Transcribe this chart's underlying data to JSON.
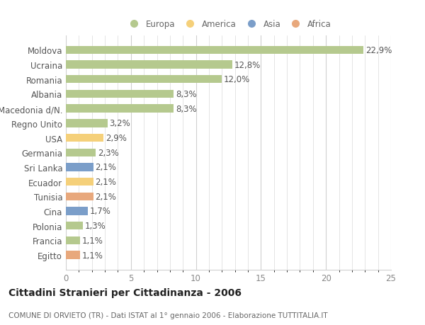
{
  "countries": [
    "Moldova",
    "Ucraina",
    "Romania",
    "Albania",
    "Macedonia d/N.",
    "Regno Unito",
    "USA",
    "Germania",
    "Sri Lanka",
    "Ecuador",
    "Tunisia",
    "Cina",
    "Polonia",
    "Francia",
    "Egitto"
  ],
  "values": [
    22.9,
    12.8,
    12.0,
    8.3,
    8.3,
    3.2,
    2.9,
    2.3,
    2.1,
    2.1,
    2.1,
    1.7,
    1.3,
    1.1,
    1.1
  ],
  "labels": [
    "22,9%",
    "12,8%",
    "12,0%",
    "8,3%",
    "8,3%",
    "3,2%",
    "2,9%",
    "2,3%",
    "2,1%",
    "2,1%",
    "2,1%",
    "1,7%",
    "1,3%",
    "1,1%",
    "1,1%"
  ],
  "continents": [
    "Europa",
    "Europa",
    "Europa",
    "Europa",
    "Europa",
    "Europa",
    "America",
    "Europa",
    "Asia",
    "America",
    "Africa",
    "Asia",
    "Europa",
    "Europa",
    "Africa"
  ],
  "continent_colors": {
    "Europa": "#b5c98e",
    "America": "#f5d07a",
    "Asia": "#7b9ec9",
    "Africa": "#e8a87c"
  },
  "legend_order": [
    "Europa",
    "America",
    "Asia",
    "Africa"
  ],
  "title": "Cittadini Stranieri per Cittadinanza - 2006",
  "subtitle": "COMUNE DI ORVIETO (TR) - Dati ISTAT al 1° gennaio 2006 - Elaborazione TUTTITALIA.IT",
  "xlim": [
    0,
    25
  ],
  "xticks": [
    0,
    5,
    10,
    15,
    20,
    25
  ],
  "background_color": "#ffffff",
  "grid_color": "#d0d0d0",
  "bar_height": 0.55,
  "title_fontsize": 10,
  "subtitle_fontsize": 7.5,
  "tick_fontsize": 8.5,
  "label_fontsize": 8.5,
  "legend_fontsize": 8.5
}
